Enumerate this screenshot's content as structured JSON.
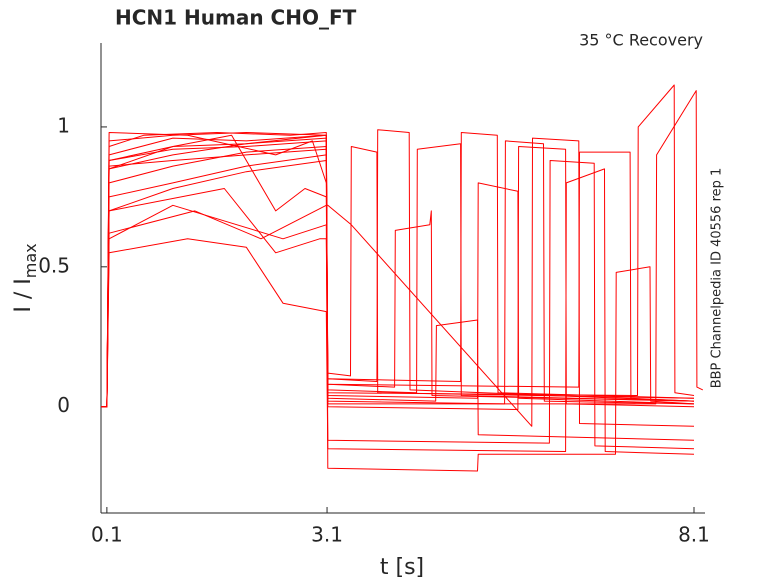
{
  "chart_data": {
    "type": "line",
    "title": "HCN1  Human  CHO_FT",
    "subtitle": "35 °C  Recovery",
    "side_note": "BBP Channelpedia ID 40556 rep 1",
    "xlabel": "t [s]",
    "ylabel": {
      "text": "I / I",
      "sub": "max"
    },
    "xlim": [
      0.02,
      8.25
    ],
    "ylim": [
      -0.38,
      1.3
    ],
    "xticks": [
      0.1,
      3.1,
      8.1
    ],
    "yticks": [
      0,
      0.5,
      1
    ],
    "color": "#ff0000",
    "series": [
      {
        "x": [
          0.02,
          0.1,
          0.13,
          0.6,
          1.6,
          2.6,
          3.09,
          3.11,
          3.42,
          3.43,
          3.78,
          3.79,
          8.1
        ],
        "values": [
          0,
          0,
          0.93,
          0.97,
          0.98,
          0.97,
          0.98,
          0.12,
          0.11,
          0.93,
          0.91,
          0.05,
          0.03
        ]
      },
      {
        "x": [
          0.02,
          0.1,
          0.13,
          1,
          2,
          3.09,
          3.11,
          3.78,
          3.79,
          4.22,
          4.23,
          8.1
        ],
        "values": [
          0,
          0,
          0.9,
          0.96,
          0.95,
          0.97,
          0.1,
          0.09,
          0.99,
          0.98,
          0.06,
          0.02
        ]
      },
      {
        "x": [
          0.02,
          0.1,
          0.13,
          1,
          2,
          3.09,
          3.11,
          4.02,
          4.03,
          4.5,
          4.52,
          4.53,
          8.1
        ],
        "values": [
          0,
          0,
          0.88,
          0.93,
          0.94,
          0.96,
          0.08,
          0.07,
          0.63,
          0.65,
          0.7,
          0.04,
          0.02
        ]
      },
      {
        "x": [
          0.02,
          0.1,
          0.13,
          1,
          2,
          3.09,
          3.11,
          4.32,
          4.33,
          4.92,
          4.93,
          8.1
        ],
        "values": [
          0,
          0,
          0.85,
          0.9,
          0.94,
          0.97,
          0.06,
          0.05,
          0.92,
          0.94,
          0.04,
          0.02
        ]
      },
      {
        "x": [
          0.02,
          0.1,
          0.13,
          1,
          2,
          3.09,
          3.11,
          4.58,
          4.59,
          5.15,
          5.16,
          8.1
        ],
        "values": [
          0,
          0,
          0.8,
          0.86,
          0.91,
          0.93,
          0.03,
          0.02,
          0.29,
          0.31,
          -0.1,
          -0.12
        ]
      },
      {
        "x": [
          0.02,
          0.1,
          0.13,
          1,
          2,
          3.09,
          3.11,
          4.92,
          4.93,
          5.42,
          5.43,
          8.1
        ],
        "values": [
          0,
          0,
          0.75,
          0.8,
          0.86,
          0.9,
          0.1,
          0.09,
          0.98,
          0.97,
          0.05,
          0.03
        ]
      },
      {
        "x": [
          0.02,
          0.1,
          0.13,
          1,
          1.8,
          2.4,
          2.8,
          3.09,
          3.11,
          5.15,
          5.16,
          5.7,
          5.71,
          8.1
        ],
        "values": [
          0,
          0,
          0.85,
          0.93,
          0.97,
          0.7,
          0.78,
          0.75,
          0.04,
          0.03,
          0.8,
          0.77,
          0.03,
          0.01
        ]
      },
      {
        "x": [
          0.02,
          0.1,
          0.13,
          1,
          2,
          3.09,
          3.11,
          5.52,
          5.53,
          6.05,
          6.06,
          8.1
        ],
        "values": [
          0,
          0,
          0.7,
          0.78,
          0.84,
          0.88,
          0.02,
          0.01,
          0.95,
          0.94,
          0.02,
          0.01
        ]
      },
      {
        "x": [
          0.02,
          0.1,
          0.13,
          1.7,
          2.4,
          3.0,
          3.09,
          3.11,
          5.7,
          5.71,
          6.35,
          6.36,
          8.1
        ],
        "values": [
          0,
          0,
          0.7,
          0.78,
          0.55,
          0.6,
          0.6,
          0,
          -0.01,
          0.93,
          0.92,
          0.01,
          0
        ]
      },
      {
        "x": [
          0.02,
          0.1,
          0.13,
          1.3,
          2.2,
          3.09,
          3.11,
          3.43,
          5.89,
          5.9,
          6.53,
          6.54,
          8.1
        ],
        "values": [
          0,
          0,
          0.62,
          0.7,
          0.6,
          0.72,
          0.72,
          0.65,
          -0.07,
          0.96,
          0.95,
          -0.06,
          -0.07
        ]
      },
      {
        "x": [
          0.02,
          0.1,
          0.13,
          1,
          2.5,
          3.09,
          3.11,
          6.13,
          6.14,
          6.74,
          6.75,
          8.1
        ],
        "values": [
          0,
          0,
          0.6,
          0.72,
          0.6,
          0.65,
          -0.12,
          -0.13,
          0.88,
          0.87,
          -0.14,
          -0.15
        ]
      },
      {
        "x": [
          0.02,
          0.1,
          0.13,
          1.2,
          2,
          2.5,
          3.09,
          3.11,
          6.35,
          6.36,
          6.88,
          6.89,
          8.1
        ],
        "values": [
          0,
          0,
          0.55,
          0.6,
          0.57,
          0.37,
          0.34,
          -0.15,
          -0.16,
          0.8,
          0.85,
          -0.16,
          -0.17
        ]
      },
      {
        "x": [
          0.02,
          0.1,
          0.13,
          1.2,
          2.4,
          2.9,
          3.09,
          3.11,
          6.53,
          6.54,
          7.23,
          7.24,
          8.1
        ],
        "values": [
          0,
          0,
          0.98,
          0.97,
          0.9,
          0.95,
          0.8,
          0.08,
          0.07,
          0.91,
          0.91,
          0.03,
          0.02
        ]
      },
      {
        "x": [
          0.02,
          0.1,
          0.13,
          1,
          2,
          3.09,
          3.11,
          5.15,
          5.16,
          7.03,
          7.04,
          7.5,
          7.51,
          8.1
        ],
        "values": [
          0,
          0,
          0.95,
          0.97,
          0.98,
          0.97,
          -0.22,
          -0.23,
          -0.17,
          -0.17,
          0.48,
          0.5,
          0.02,
          0.01
        ]
      },
      {
        "x": [
          0.02,
          0.1,
          0.13,
          1,
          2,
          3.09,
          3.11,
          7.33,
          7.34,
          7.83,
          7.84,
          8.1
        ],
        "values": [
          0,
          0,
          0.88,
          0.92,
          0.93,
          0.95,
          0.05,
          0.04,
          1.0,
          1.15,
          0.05,
          0.04
        ]
      },
      {
        "x": [
          0.02,
          0.1,
          0.13,
          1,
          2,
          3.09,
          3.11,
          7.58,
          7.59,
          8.13,
          8.14,
          8.22
        ],
        "values": [
          0,
          0,
          0.86,
          0.88,
          0.9,
          0.92,
          0.01,
          0.01,
          0.9,
          1.13,
          0.07,
          0.06
        ]
      }
    ]
  }
}
